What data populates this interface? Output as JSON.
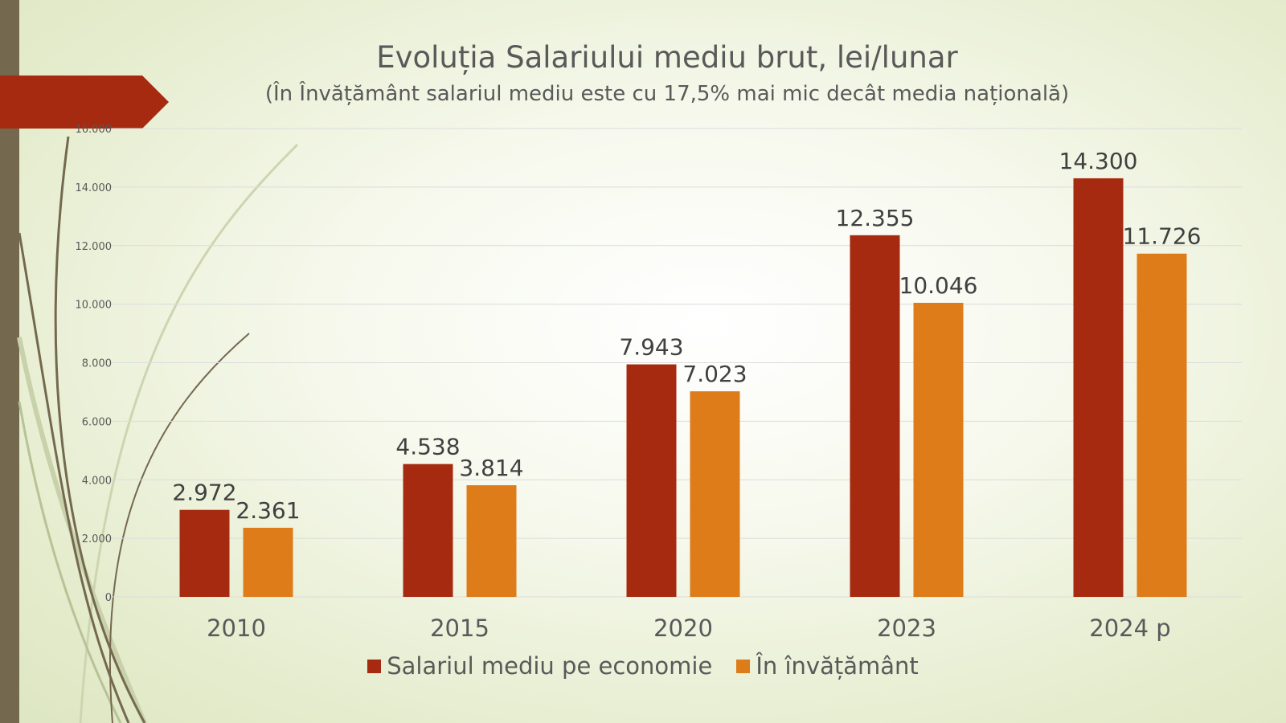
{
  "colors": {
    "series_economy": "#a52a0f",
    "series_education": "#de7c1a",
    "text": "#595959",
    "stripe": "#74694f",
    "banner": "#a52a0f"
  },
  "chart_data": {
    "type": "bar",
    "title": "Evoluția Salariului mediu brut, lei/lunar",
    "subtitle": "(În Învățământ salariul mediu este cu 17,5% mai mic decât media națională)",
    "categories": [
      "2010",
      "2015",
      "2020",
      "2023",
      "2024 p"
    ],
    "series": [
      {
        "name": "Salariul mediu pe economie",
        "values": [
          2972,
          4538,
          7943,
          12355,
          14300
        ],
        "labels": [
          "2.972",
          "4.538",
          "7.943",
          "12.355",
          "14.300"
        ]
      },
      {
        "name": "În învățământ",
        "values": [
          2361,
          3814,
          7023,
          10046,
          11726
        ],
        "labels": [
          "2.361",
          "3.814",
          "7.023",
          "10.046",
          "11.726"
        ]
      }
    ],
    "ylim": [
      0,
      16000
    ],
    "yticks": [
      0,
      2000,
      4000,
      6000,
      8000,
      10000,
      12000,
      14000,
      16000
    ],
    "ytick_labels": [
      "0",
      "2.000",
      "4.000",
      "6.000",
      "8.000",
      "10.000",
      "12.000",
      "14.000",
      "16.000"
    ],
    "grid": true,
    "legend_position": "bottom"
  }
}
